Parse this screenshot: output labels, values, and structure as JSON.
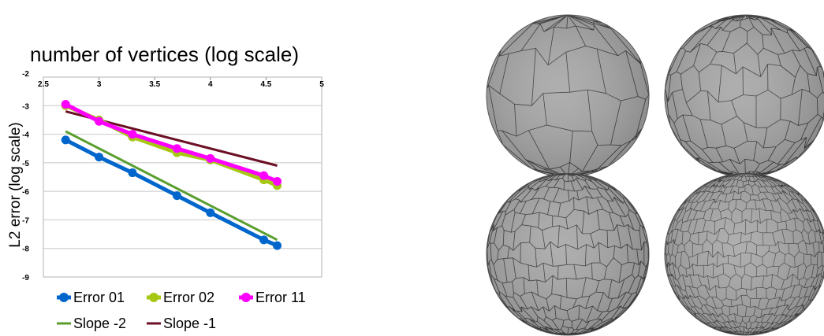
{
  "chart_data": {
    "type": "line",
    "title": "number of vertices (log scale)",
    "xlabel": "",
    "ylabel": "L2 error (log scale)",
    "xlim": [
      2.5,
      5
    ],
    "ylim": [
      -9,
      -2
    ],
    "x_ticks": [
      "2.5",
      "3",
      "3.5",
      "4",
      "4.5",
      "5"
    ],
    "y_ticks": [
      "-2",
      "-3",
      "-4",
      "-5",
      "-6",
      "-7",
      "-8",
      "-9"
    ],
    "grid": true,
    "legend_position": "bottom",
    "series": [
      {
        "name": "Error 01",
        "color": "#0066cc",
        "marker": true,
        "x": [
          2.7,
          3.0,
          3.3,
          3.7,
          4.0,
          4.48,
          4.6
        ],
        "y": [
          -4.2,
          -4.8,
          -5.35,
          -6.15,
          -6.75,
          -7.7,
          -7.9
        ]
      },
      {
        "name": "Error 02",
        "color": "#a6c813",
        "marker": true,
        "x": [
          2.7,
          3.0,
          3.3,
          3.7,
          4.0,
          4.48,
          4.6
        ],
        "y": [
          -3.0,
          -3.5,
          -4.1,
          -4.65,
          -4.9,
          -5.6,
          -5.8
        ]
      },
      {
        "name": "Error 11",
        "color": "#ff00ff",
        "marker": true,
        "x": [
          2.7,
          3.0,
          3.3,
          3.7,
          4.0,
          4.48,
          4.6
        ],
        "y": [
          -2.95,
          -3.55,
          -4.0,
          -4.5,
          -4.85,
          -5.45,
          -5.65
        ]
      },
      {
        "name": "Slope -2",
        "color": "#5a9e2e",
        "marker": false,
        "x": [
          2.7,
          4.6
        ],
        "y": [
          -3.9,
          -7.7
        ]
      },
      {
        "name": "Slope -1",
        "color": "#6b0f24",
        "marker": false,
        "x": [
          2.7,
          4.6
        ],
        "y": [
          -3.2,
          -5.1
        ]
      }
    ]
  },
  "spheres": {
    "fill_color": "#a8a8a8",
    "edge_color": "#3a3a3a",
    "panels": [
      {
        "cell_density": 6
      },
      {
        "cell_density": 10
      },
      {
        "cell_density": 15
      },
      {
        "cell_density": 22
      }
    ]
  }
}
